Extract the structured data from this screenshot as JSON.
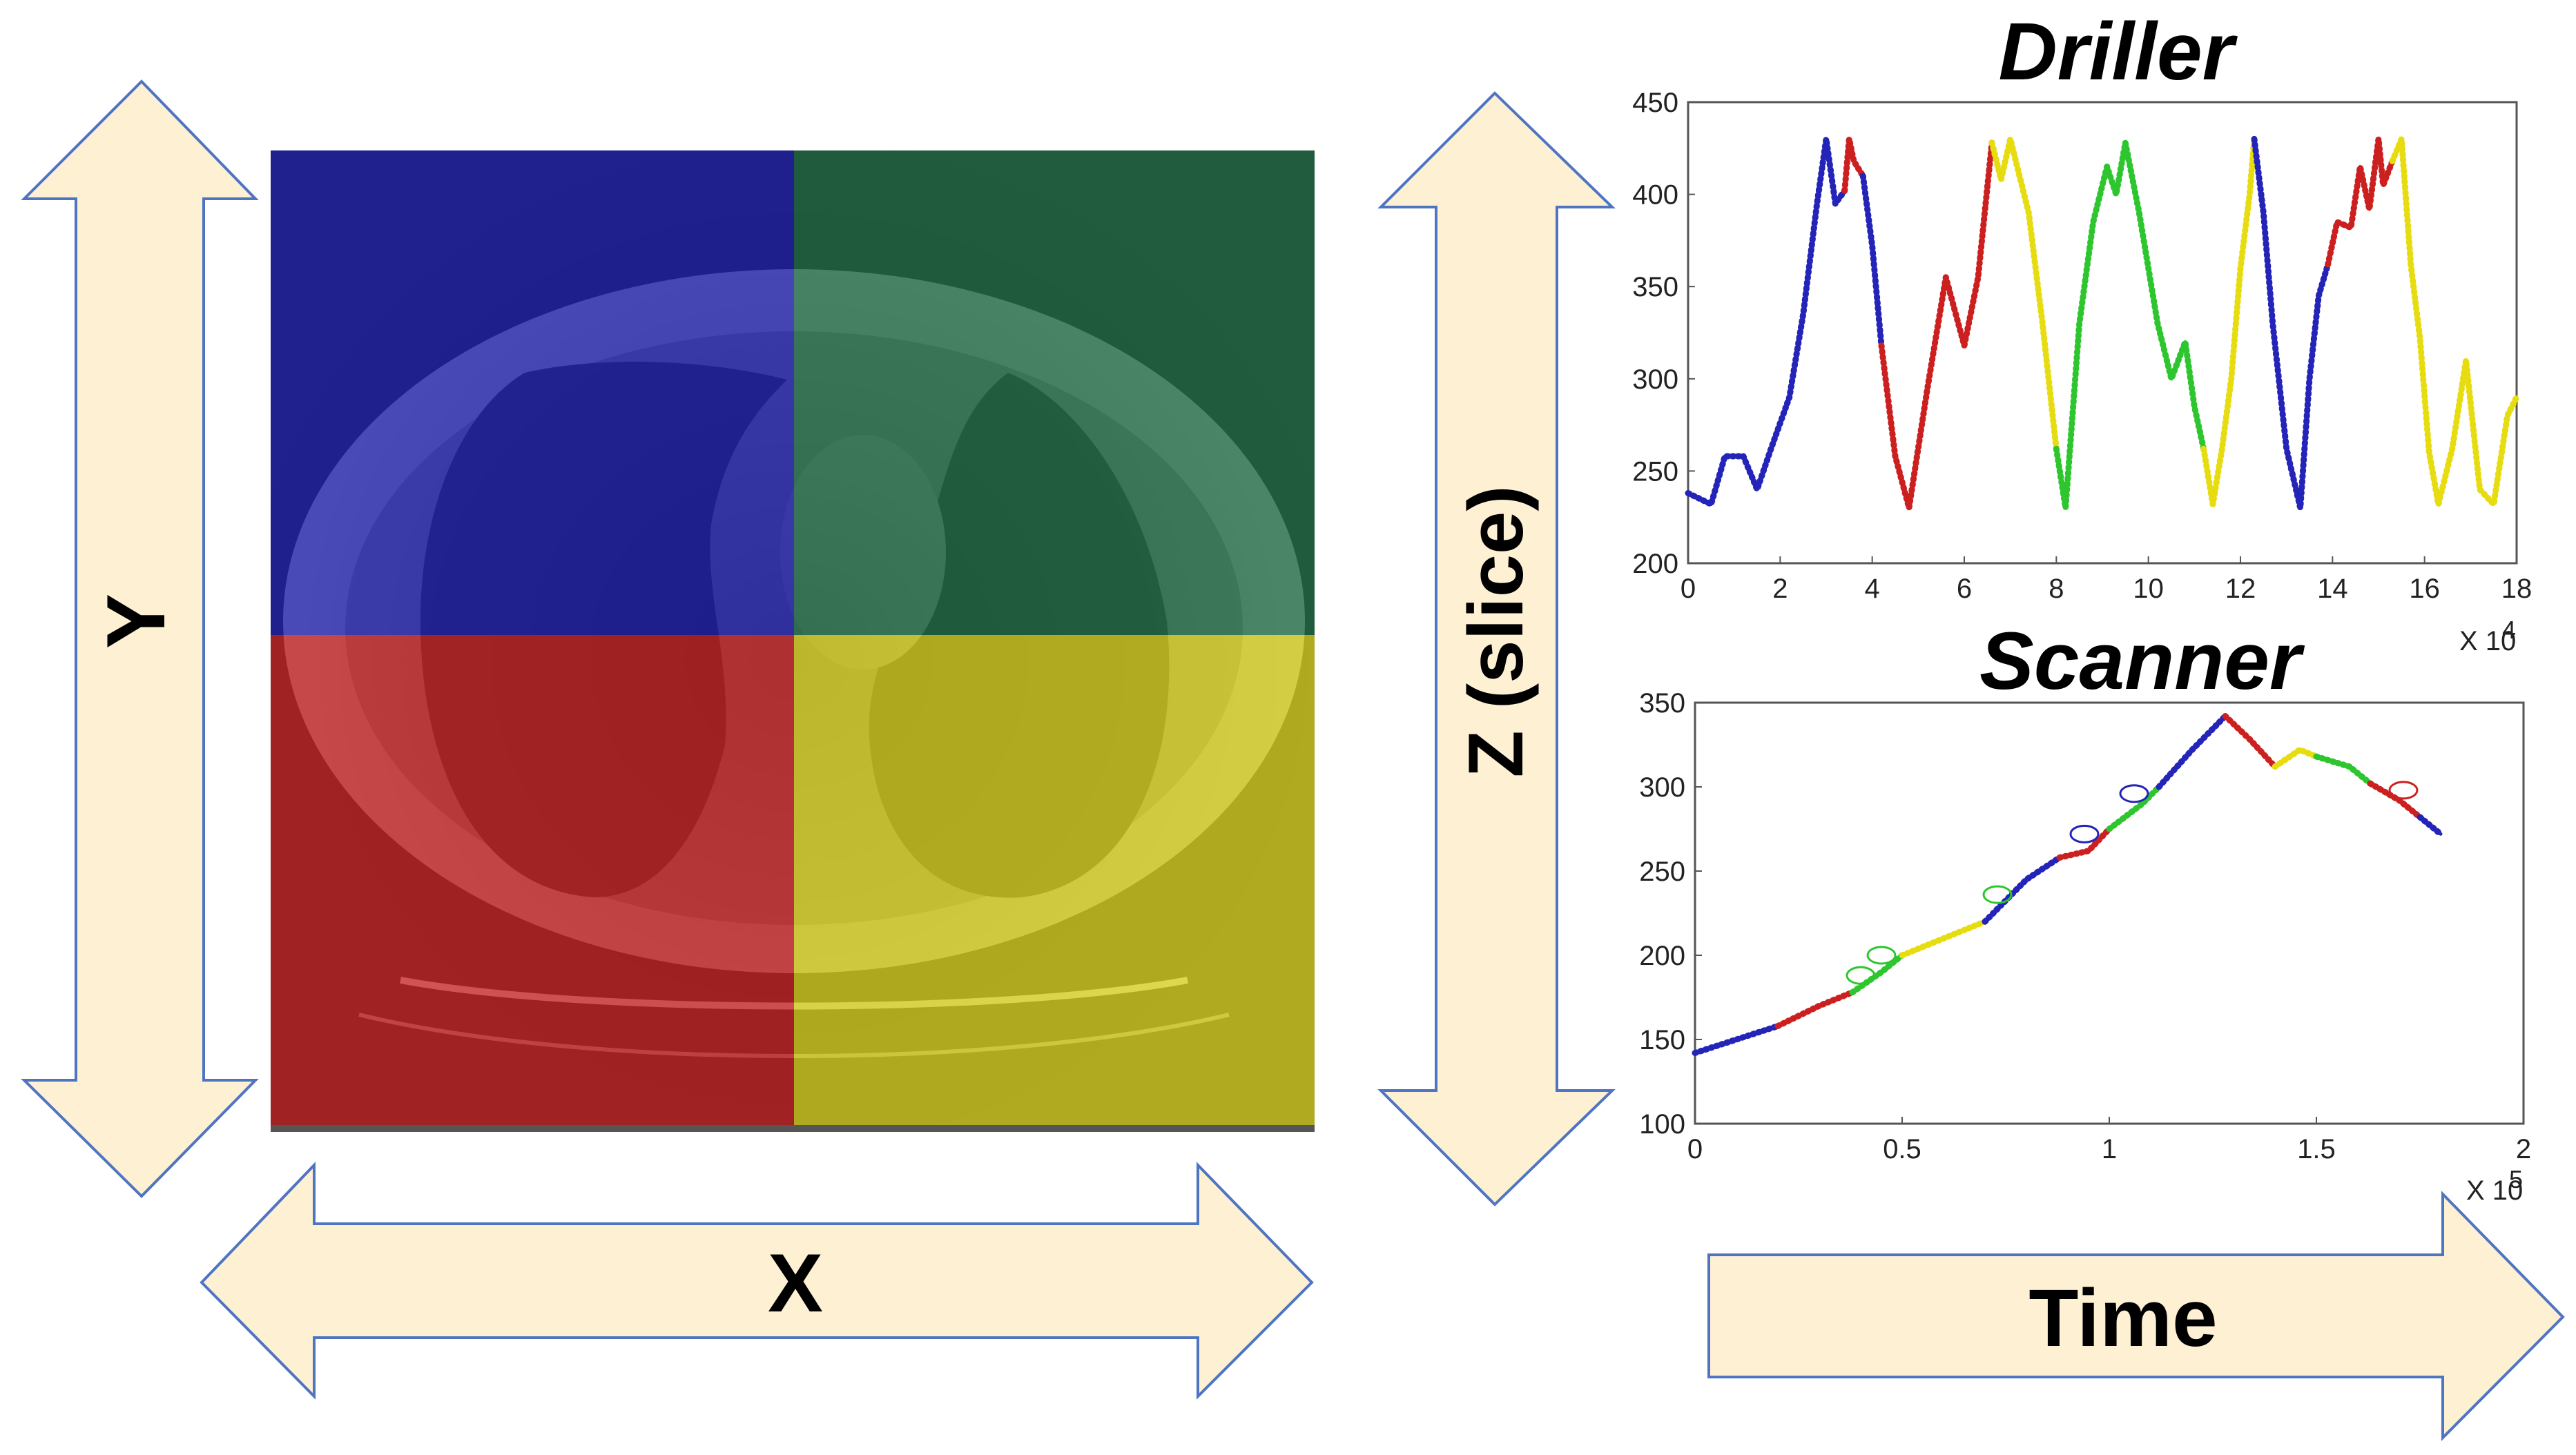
{
  "axes_labels": {
    "y": "Y",
    "x": "X",
    "z": "Z (slice)",
    "time": "Time"
  },
  "quadrants": [
    {
      "name": "top-left",
      "color": "#1a1acc"
    },
    {
      "name": "top-right",
      "color": "#1d7a4c"
    },
    {
      "name": "bottom-left",
      "color": "#d01e1e"
    },
    {
      "name": "bottom-right",
      "color": "#d8d41c"
    }
  ],
  "arrow_fill": "#fdf0d3",
  "arrow_stroke": "#4f74c2",
  "chart_data": [
    {
      "type": "line",
      "title": "Driller",
      "xlabel": "",
      "ylabel": "",
      "xlim": [
        0,
        180000
      ],
      "ylim": [
        200,
        450
      ],
      "x_ticks": [
        "0",
        "2",
        "4",
        "6",
        "8",
        "10",
        "12",
        "14",
        "16",
        "18"
      ],
      "y_ticks": [
        "450",
        "400",
        "350",
        "300",
        "250",
        "200"
      ],
      "x_multiplier": "X 10",
      "x_multiplier_exp": "4",
      "colors": {
        "top-left": "#2424b8",
        "bottom-left": "#cc2020",
        "top-right": "#2ec62e",
        "bottom-right": "#e6dc10"
      },
      "segments": [
        {
          "color": "top-left",
          "x": [
            0,
            5000,
            8000,
            12000,
            15000,
            18000,
            22000,
            25000,
            28000,
            30000,
            32000,
            34000
          ],
          "y": [
            238,
            232,
            258,
            258,
            240,
            262,
            290,
            335,
            395,
            430,
            395,
            402
          ]
        },
        {
          "color": "bottom-left",
          "x": [
            34000,
            35000,
            36000,
            38000
          ],
          "y": [
            402,
            430,
            418,
            410
          ]
        },
        {
          "color": "top-left",
          "x": [
            38000,
            40000,
            42000
          ],
          "y": [
            410,
            372,
            318
          ]
        },
        {
          "color": "bottom-left",
          "x": [
            42000,
            45000,
            48000,
            52000,
            56000,
            60000,
            63000,
            66000
          ],
          "y": [
            318,
            258,
            230,
            295,
            355,
            318,
            355,
            428
          ]
        },
        {
          "color": "bottom-right",
          "x": [
            66000,
            68000,
            70000,
            72000,
            74000,
            77000,
            80000
          ],
          "y": [
            428,
            408,
            430,
            410,
            390,
            330,
            262
          ]
        },
        {
          "color": "top-right",
          "x": [
            80000,
            82000,
            85000,
            88000,
            91000,
            93000,
            95000,
            98000,
            102000,
            105000,
            108000,
            110000,
            112000
          ],
          "y": [
            262,
            230,
            330,
            385,
            415,
            400,
            428,
            390,
            330,
            300,
            320,
            285,
            262
          ]
        },
        {
          "color": "bottom-right",
          "x": [
            112000,
            114000,
            116000,
            118000,
            120000,
            122000,
            123000
          ],
          "y": [
            262,
            232,
            262,
            300,
            360,
            400,
            430
          ]
        },
        {
          "color": "top-left",
          "x": [
            123000,
            125000,
            127000,
            130000,
            133000,
            135000,
            137000,
            139000
          ],
          "y": [
            430,
            390,
            330,
            262,
            230,
            300,
            345,
            362
          ]
        },
        {
          "color": "bottom-left",
          "x": [
            139000,
            141000,
            144000,
            146000,
            148000,
            150000,
            151000,
            153000
          ],
          "y": [
            362,
            385,
            382,
            415,
            392,
            430,
            405,
            418
          ]
        },
        {
          "color": "bottom-right",
          "x": [
            153000,
            155000,
            157000,
            159000,
            161000,
            163000,
            166000,
            169000,
            172000,
            175000,
            178000,
            180000
          ],
          "y": [
            418,
            430,
            362,
            322,
            260,
            232,
            262,
            310,
            240,
            232,
            280,
            290
          ]
        }
      ]
    },
    {
      "type": "line",
      "title": "Scanner",
      "xlabel": "",
      "ylabel": "",
      "xlim": [
        0,
        200000
      ],
      "ylim": [
        100,
        350
      ],
      "x_ticks": [
        "0",
        "0.5",
        "1",
        "1.5",
        "2"
      ],
      "y_ticks": [
        "350",
        "300",
        "250",
        "200",
        "150",
        "100"
      ],
      "x_multiplier": "X 10",
      "x_multiplier_exp": "5",
      "colors": {
        "blue": "#2424b8",
        "red": "#cc2020",
        "green": "#2ec62e",
        "yellow": "#e6dc10"
      },
      "segments": [
        {
          "color": "blue",
          "x": [
            0,
            10000,
            20000
          ],
          "y": [
            142,
            150,
            158
          ]
        },
        {
          "color": "red",
          "x": [
            20000,
            30000,
            38000
          ],
          "y": [
            158,
            170,
            178
          ]
        },
        {
          "color": "green",
          "x": [
            38000,
            45000,
            50000
          ],
          "y": [
            178,
            190,
            200
          ]
        },
        {
          "color": "yellow",
          "x": [
            50000,
            60000,
            70000
          ],
          "y": [
            200,
            210,
            220
          ]
        },
        {
          "color": "blue",
          "x": [
            70000,
            80000,
            88000
          ],
          "y": [
            220,
            245,
            258
          ]
        },
        {
          "color": "red",
          "x": [
            88000,
            95000,
            100000
          ],
          "y": [
            258,
            262,
            275
          ]
        },
        {
          "color": "green",
          "x": [
            100000,
            108000,
            112000
          ],
          "y": [
            275,
            290,
            300
          ]
        },
        {
          "color": "blue",
          "x": [
            112000,
            120000,
            128000
          ],
          "y": [
            300,
            322,
            342
          ]
        },
        {
          "color": "red",
          "x": [
            128000,
            134000,
            140000
          ],
          "y": [
            342,
            328,
            312
          ]
        },
        {
          "color": "yellow",
          "x": [
            140000,
            146000,
            150000
          ],
          "y": [
            312,
            322,
            318
          ]
        },
        {
          "color": "green",
          "x": [
            150000,
            158000,
            163000
          ],
          "y": [
            318,
            312,
            302
          ]
        },
        {
          "color": "red",
          "x": [
            163000,
            170000,
            175000
          ],
          "y": [
            302,
            292,
            282
          ]
        },
        {
          "color": "blue",
          "x": [
            175000,
            180000
          ],
          "y": [
            282,
            272
          ]
        }
      ],
      "circles": [
        {
          "x": 40000,
          "y": 188,
          "color": "green"
        },
        {
          "x": 45000,
          "y": 200,
          "color": "green"
        },
        {
          "x": 73000,
          "y": 236,
          "color": "green"
        },
        {
          "x": 94000,
          "y": 272,
          "color": "blue"
        },
        {
          "x": 106000,
          "y": 296,
          "color": "blue"
        },
        {
          "x": 171000,
          "y": 298,
          "color": "red"
        }
      ]
    }
  ]
}
